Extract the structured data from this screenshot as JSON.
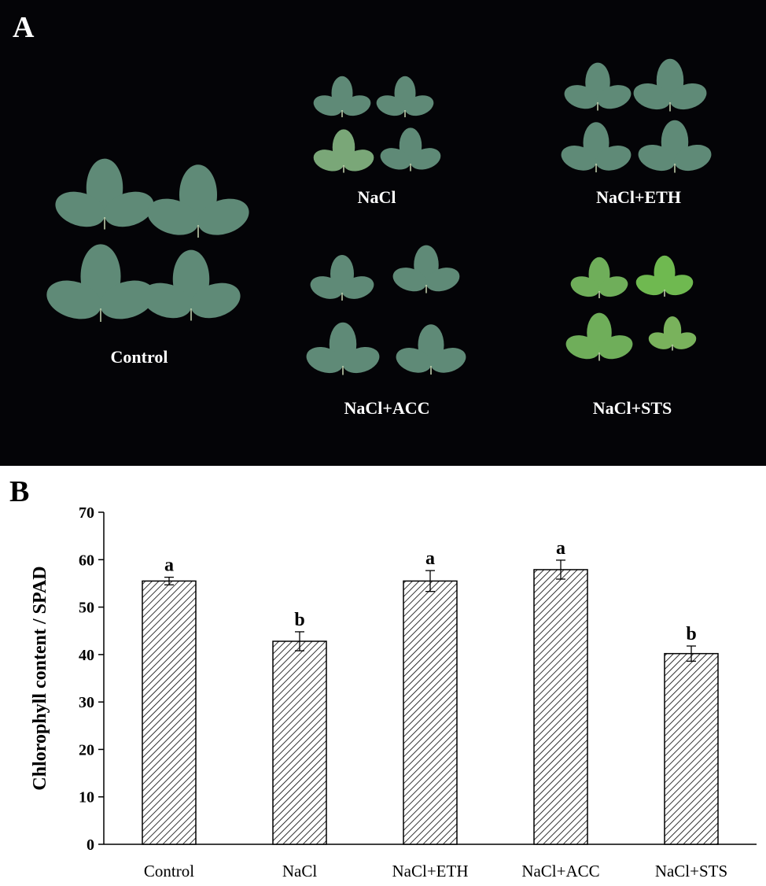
{
  "panel_a": {
    "letter": "A",
    "background": "#040407",
    "leaf_color": "#5f8a77",
    "leaf_color_sts": "#6fae5a",
    "groups": [
      {
        "label": "Control"
      },
      {
        "label": "NaCl"
      },
      {
        "label": "NaCl+ETH"
      },
      {
        "label": "NaCl+ACC"
      },
      {
        "label": "NaCl+STS"
      }
    ]
  },
  "panel_b": {
    "letter": "B"
  },
  "chart_data": {
    "type": "bar",
    "categories": [
      "Control",
      "NaCl",
      "NaCl+ETH",
      "NaCl+ACC",
      "NaCl+STS"
    ],
    "values": [
      55.5,
      42.8,
      55.5,
      57.9,
      40.2
    ],
    "errors": [
      0.8,
      2.0,
      2.2,
      2.0,
      1.6
    ],
    "significance": [
      "a",
      "b",
      "a",
      "a",
      "b"
    ],
    "xlabel": "",
    "ylabel": "Chlorophyll content / SPAD",
    "ylim": [
      0,
      70
    ],
    "yticks": [
      0,
      10,
      20,
      30,
      40,
      50,
      60,
      70
    ],
    "bar_fill": "diagonal-hatch",
    "grid": false
  }
}
